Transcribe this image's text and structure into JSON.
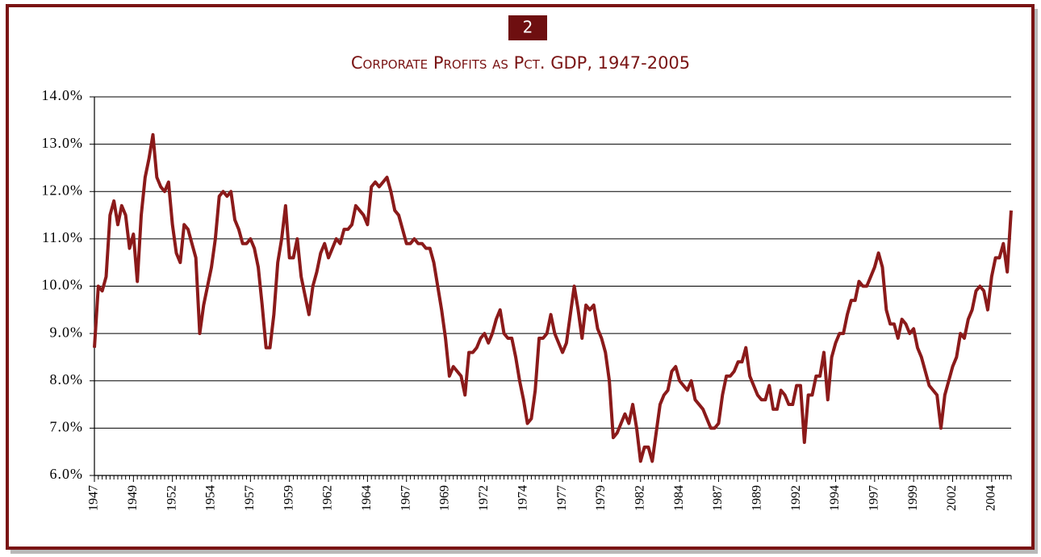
{
  "badge": "2",
  "chart_data": {
    "type": "line",
    "title": "Corporate Profits as Pct. GDP, 1947-2005",
    "categories": [
      "1947",
      null,
      null,
      null,
      null,
      null,
      null,
      null,
      null,
      null,
      "1949",
      null,
      null,
      null,
      null,
      null,
      null,
      null,
      null,
      null,
      "1952",
      null,
      null,
      null,
      null,
      null,
      null,
      null,
      null,
      null,
      "1954",
      null,
      null,
      null,
      null,
      null,
      null,
      null,
      null,
      null,
      "1957",
      null,
      null,
      null,
      null,
      null,
      null,
      null,
      null,
      null,
      "1959",
      null,
      null,
      null,
      null,
      null,
      null,
      null,
      null,
      null,
      "1962",
      null,
      null,
      null,
      null,
      null,
      null,
      null,
      null,
      null,
      "1964",
      null,
      null,
      null,
      null,
      null,
      null,
      null,
      null,
      null,
      "1967",
      null,
      null,
      null,
      null,
      null,
      null,
      null,
      null,
      null,
      "1969",
      null,
      null,
      null,
      null,
      null,
      null,
      null,
      null,
      null,
      "1972",
      null,
      null,
      null,
      null,
      null,
      null,
      null,
      null,
      null,
      "1974",
      null,
      null,
      null,
      null,
      null,
      null,
      null,
      null,
      null,
      "1977",
      null,
      null,
      null,
      null,
      null,
      null,
      null,
      null,
      null,
      "1979",
      null,
      null,
      null,
      null,
      null,
      null,
      null,
      null,
      null,
      "1982",
      null,
      null,
      null,
      null,
      null,
      null,
      null,
      null,
      null,
      "1984",
      null,
      null,
      null,
      null,
      null,
      null,
      null,
      null,
      null,
      "1987",
      null,
      null,
      null,
      null,
      null,
      null,
      null,
      null,
      null,
      "1989",
      null,
      null,
      null,
      null,
      null,
      null,
      null,
      null,
      null,
      "1992",
      null,
      null,
      null,
      null,
      null,
      null,
      null,
      null,
      null,
      "1994",
      null,
      null,
      null,
      null,
      null,
      null,
      null,
      null,
      null,
      "1997",
      null,
      null,
      null,
      null,
      null,
      null,
      null,
      null,
      null,
      "1999",
      null,
      null,
      null,
      null,
      null,
      null,
      null,
      null,
      null,
      "2002",
      null,
      null,
      null,
      null,
      null,
      null,
      null,
      null,
      null,
      "2004",
      null,
      null,
      null,
      null,
      null
    ],
    "series": [
      {
        "name": "Corporate Profits as Pct. GDP",
        "color": "#8b1a1a",
        "values": [
          8.7,
          10.0,
          9.9,
          10.2,
          11.5,
          11.8,
          11.3,
          11.7,
          11.5,
          10.8,
          11.1,
          10.1,
          11.5,
          12.3,
          12.7,
          13.2,
          12.3,
          12.1,
          12.0,
          12.2,
          11.3,
          10.7,
          10.5,
          11.3,
          11.2,
          10.9,
          10.6,
          9.0,
          9.6,
          10.0,
          10.4,
          11.0,
          11.9,
          12.0,
          11.9,
          12.0,
          11.4,
          11.2,
          10.9,
          10.9,
          11.0,
          10.8,
          10.4,
          9.6,
          8.7,
          8.7,
          9.4,
          10.5,
          11.0,
          11.7,
          10.6,
          10.6,
          11.0,
          10.2,
          9.8,
          9.4,
          10.0,
          10.3,
          10.7,
          10.9,
          10.6,
          10.8,
          11.0,
          10.9,
          11.2,
          11.2,
          11.3,
          11.7,
          11.6,
          11.5,
          11.3,
          12.1,
          12.2,
          12.1,
          12.2,
          12.3,
          12.0,
          11.6,
          11.5,
          11.2,
          10.9,
          10.9,
          11.0,
          10.9,
          10.9,
          10.8,
          10.8,
          10.5,
          10.0,
          9.5,
          8.9,
          8.1,
          8.3,
          8.2,
          8.1,
          7.7,
          8.6,
          8.6,
          8.7,
          8.9,
          9.0,
          8.8,
          9.0,
          9.3,
          9.5,
          9.0,
          8.9,
          8.9,
          8.5,
          8.0,
          7.6,
          7.1,
          7.2,
          7.8,
          8.9,
          8.9,
          9.0,
          9.4,
          9.0,
          8.8,
          8.6,
          8.8,
          9.4,
          10.0,
          9.5,
          8.9,
          9.6,
          9.5,
          9.6,
          9.1,
          8.9,
          8.6,
          8.0,
          6.8,
          6.9,
          7.1,
          7.3,
          7.1,
          7.5,
          7.0,
          6.3,
          6.6,
          6.6,
          6.3,
          6.9,
          7.5,
          7.7,
          7.8,
          8.2,
          8.3,
          8.0,
          7.9,
          7.8,
          8.0,
          7.6,
          7.5,
          7.4,
          7.2,
          7.0,
          7.0,
          7.1,
          7.7,
          8.1,
          8.1,
          8.2,
          8.4,
          8.4,
          8.7,
          8.1,
          7.9,
          7.7,
          7.6,
          7.6,
          7.9,
          7.4,
          7.4,
          7.8,
          7.7,
          7.5,
          7.5,
          7.9,
          7.9,
          6.7,
          7.7,
          7.7,
          8.1,
          8.1,
          8.6,
          7.6,
          8.5,
          8.8,
          9.0,
          9.0,
          9.4,
          9.7,
          9.7,
          10.1,
          10.0,
          10.0,
          10.2,
          10.4,
          10.7,
          10.4,
          9.5,
          9.2,
          9.2,
          8.9,
          9.3,
          9.2,
          9.0,
          9.1,
          8.7,
          8.5,
          8.2,
          7.9,
          7.8,
          7.7,
          7.0,
          7.7,
          8.0,
          8.3,
          8.5,
          9.0,
          8.9,
          9.3,
          9.5,
          9.9,
          10.0,
          9.9,
          9.5,
          10.2,
          10.6,
          10.6,
          10.9,
          10.3,
          11.6
        ]
      }
    ],
    "ylim": [
      6,
      14
    ],
    "yticks": [
      {
        "value": 6,
        "label": "6.0%"
      },
      {
        "value": 7,
        "label": "7.0%"
      },
      {
        "value": 8,
        "label": "8.0%"
      },
      {
        "value": 9,
        "label": "9.0%"
      },
      {
        "value": 10,
        "label": "10.0%"
      },
      {
        "value": 11,
        "label": "11.0%"
      },
      {
        "value": 12,
        "label": "12.0%"
      },
      {
        "value": 13,
        "label": "13.0%"
      },
      {
        "value": 14,
        "label": "14.0%"
      }
    ],
    "grid": true,
    "legend": false
  }
}
